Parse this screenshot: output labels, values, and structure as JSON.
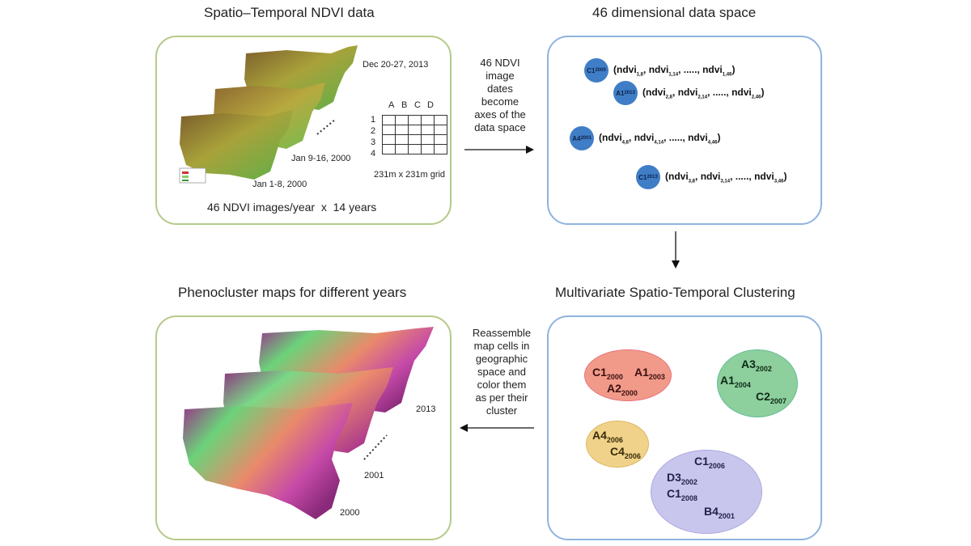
{
  "titles": {
    "top_left": "Spatio–Temporal NDVI data",
    "top_right": "46 dimensional data space",
    "bottom_left": "Phenocluster maps for different years",
    "bottom_right": "Multivariate Spatio-Temporal Clustering"
  },
  "ndvi_panel": {
    "date_top": "Dec 20-27, 2013",
    "date_mid": "Jan 9-16, 2000",
    "date_bottom": "Jan 1-8, 2000",
    "grid_cols": [
      "A",
      "B",
      "C",
      "D"
    ],
    "grid_rows": [
      "1",
      "2",
      "3",
      "4"
    ],
    "grid_caption": "231m x 231m grid",
    "footer": "46 NDVI images/year  x  14 years"
  },
  "arrow_right_text": "46 NDVI\nimage\ndates\nbecome\naxes of the\ndata space",
  "arrow_left_text": "Reassemble\nmap cells in\ngeographic\nspace and\ncolor them\nas per their\ncluster",
  "data_space": [
    {
      "dot": "C1",
      "dot_sub": "2000",
      "idx": "1",
      "tail": "46"
    },
    {
      "dot": "A1",
      "dot_sub": "2013",
      "idx": "2",
      "tail": "46"
    },
    {
      "dot": "A4",
      "dot_sub": "2001",
      "idx": "4",
      "tail": "46"
    },
    {
      "dot": "C1",
      "dot_sub": "2013",
      "idx": "3",
      "tail": "46"
    }
  ],
  "clusters": {
    "red": {
      "color": "#f29a8a",
      "labels": [
        [
          "C1",
          "2000"
        ],
        [
          "A1",
          "2003"
        ],
        [
          "A2",
          "2000"
        ]
      ]
    },
    "green": {
      "color": "#8ecf9e",
      "labels": [
        [
          "A3",
          "2002"
        ],
        [
          "A1",
          "2004"
        ],
        [
          "C2",
          "2007"
        ]
      ]
    },
    "yellow": {
      "color": "#f0d28a",
      "labels": [
        [
          "A4",
          "2006"
        ],
        [
          "C4",
          "2006"
        ]
      ]
    },
    "purple": {
      "color": "#c9c6ee",
      "labels": [
        [
          "C1",
          "2006"
        ],
        [
          "D3",
          "2002"
        ],
        [
          "C1",
          "2008"
        ],
        [
          "B4",
          "2001"
        ]
      ]
    }
  },
  "map_years": {
    "top": "2013",
    "mid": "2001",
    "bottom": "2000"
  },
  "colors": {
    "green_border": "#b5c98a",
    "blue_border": "#8fb3e0",
    "dot_blue": "#3f7ec6"
  }
}
